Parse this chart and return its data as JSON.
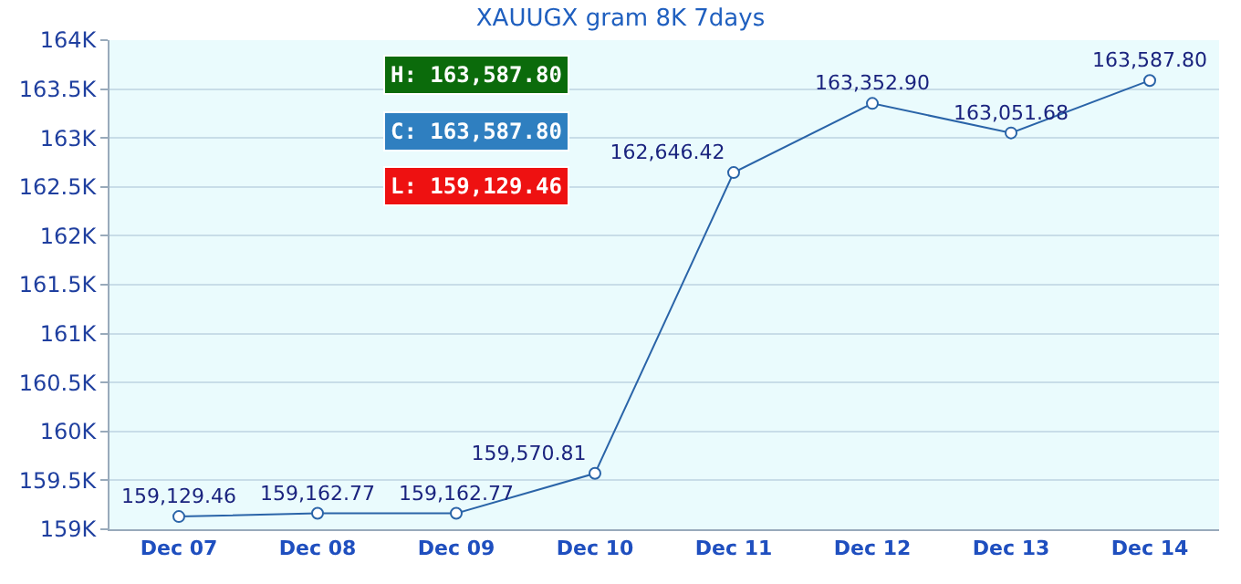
{
  "chart_data": {
    "type": "line",
    "title": "XAUUGX gram 8K 7days",
    "categories": [
      "Dec 07",
      "Dec 08",
      "Dec 09",
      "Dec 10",
      "Dec 11",
      "Dec 12",
      "Dec 13",
      "Dec 14"
    ],
    "series": [
      {
        "color": "#2a64a8",
        "values": [
          159129.46,
          159162.77,
          159162.77,
          159570.81,
          162646.42,
          163352.9,
          163051.68,
          163587.8
        ],
        "value_labels": [
          "159,129.46",
          "159,162.77",
          "159,162.77",
          "159,570.81",
          "162,646.42",
          "163,352.90",
          "163,051.68",
          "163,587.80"
        ]
      }
    ],
    "ylim": [
      159000,
      164000
    ],
    "yticks": [
      {
        "value": 159000,
        "label": "159K"
      },
      {
        "value": 159500,
        "label": "159.5K"
      },
      {
        "value": 160000,
        "label": "160K"
      },
      {
        "value": 160500,
        "label": "160.5K"
      },
      {
        "value": 161000,
        "label": "161K"
      },
      {
        "value": 161500,
        "label": "161.5K"
      },
      {
        "value": 162000,
        "label": "162K"
      },
      {
        "value": 162500,
        "label": "162.5K"
      },
      {
        "value": 163000,
        "label": "163K"
      },
      {
        "value": 163500,
        "label": "163.5K"
      },
      {
        "value": 164000,
        "label": "164K"
      }
    ],
    "grid": "y",
    "marker": "circle",
    "line_style": "solid",
    "annotations": [
      "H: 163,587.80",
      "C: 163,587.80",
      "L: 159,129.46"
    ]
  }
}
